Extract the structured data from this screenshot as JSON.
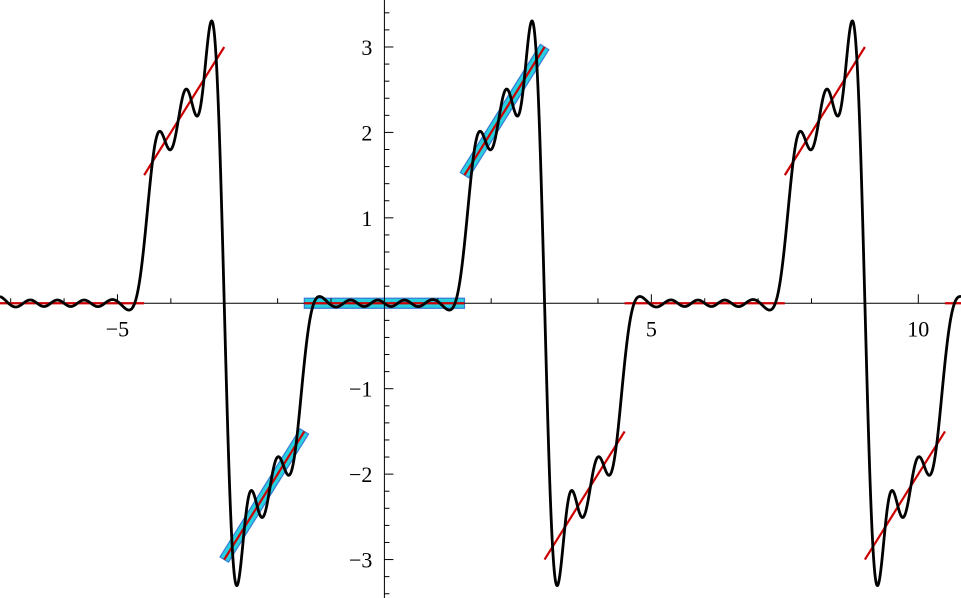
{
  "chart_data": {
    "type": "line",
    "title": "",
    "xlabel": "",
    "ylabel": "",
    "xlim": [
      -7.2,
      10.8
    ],
    "ylim": [
      -3.45,
      3.55
    ],
    "grid": false,
    "legend": "none",
    "x_ticks": [
      -5,
      5,
      10
    ],
    "x_tick_labels": [
      "−5",
      "5",
      "10"
    ],
    "y_ticks": [
      -3,
      -2,
      -1,
      1,
      2,
      3
    ],
    "y_tick_labels": [
      "−3",
      "−2",
      "−1",
      "1",
      "2",
      "3"
    ],
    "period": 6,
    "function_segments": [
      {
        "x_start": -1.5,
        "x_end": 1.5,
        "slope": 0,
        "intercept": 0
      },
      {
        "x_start": 1.5,
        "x_end": 3.0,
        "slope": 1,
        "intercept": 0
      },
      {
        "x_start": 3.0,
        "x_end": 4.5,
        "slope": 1,
        "intercept": -6
      }
    ],
    "fourier_harmonics": 12,
    "series": [
      {
        "role": "exact piecewise-linear function",
        "color": "#cc0000"
      },
      {
        "role": "truncated Fourier series",
        "color": "#000000"
      },
      {
        "role": "highlighted segments",
        "color": "#00c8d8",
        "segments": [
          [
            -1.5,
            1.5
          ],
          [
            1.5,
            3.0
          ],
          [
            -3.0,
            -1.5
          ]
        ]
      }
    ]
  }
}
